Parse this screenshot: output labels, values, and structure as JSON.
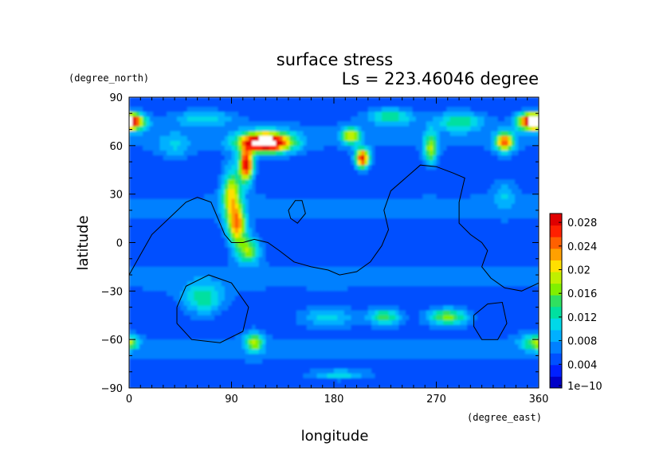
{
  "chart_data": {
    "type": "heatmap",
    "title": "surface stress",
    "subtitle": "Ls = 223.46046 degree",
    "xlabel": "longitude",
    "ylabel": "latitude",
    "x_unit": "(degree_east)",
    "y_unit": "(degree_north)",
    "xlim": [
      0,
      360
    ],
    "ylim": [
      -90,
      90
    ],
    "xticks": [
      "0",
      "90",
      "180",
      "270",
      "360"
    ],
    "yticks": [
      "90",
      "60",
      "30",
      "0",
      "−30",
      "−60",
      "−90"
    ],
    "colorbar": {
      "labels": [
        "0.028",
        "0.024",
        "0.02",
        "0.016",
        "0.012",
        "0.008",
        "0.004",
        "1e−10"
      ],
      "levels": [
        0.028,
        0.024,
        0.02,
        0.016,
        0.012,
        0.008,
        0.004,
        1e-10
      ],
      "colors": [
        "#0000c8",
        "#0020ff",
        "#0050ff",
        "#0080ff",
        "#00b0ff",
        "#00d8e8",
        "#00e0a0",
        "#30e060",
        "#80f000",
        "#c0f000",
        "#ffe000",
        "#ffa000",
        "#ff6000",
        "#ff2000",
        "#e00000"
      ]
    },
    "background_level": 0.004,
    "features": [
      {
        "lon": 120,
        "lat": 62,
        "value": 0.034,
        "rlon": 22,
        "rlat": 6
      },
      {
        "lon": 103,
        "lat": 48,
        "value": 0.028,
        "rlon": 6,
        "rlat": 10
      },
      {
        "lon": 0,
        "lat": 75,
        "value": 0.034,
        "rlon": 12,
        "rlat": 5
      },
      {
        "lon": 355,
        "lat": 75,
        "value": 0.034,
        "rlon": 12,
        "rlat": 5
      },
      {
        "lon": 205,
        "lat": 52,
        "value": 0.026,
        "rlon": 6,
        "rlat": 6
      },
      {
        "lon": 195,
        "lat": 66,
        "value": 0.018,
        "rlon": 8,
        "rlat": 5
      },
      {
        "lon": 330,
        "lat": 62,
        "value": 0.022,
        "rlon": 8,
        "rlat": 6
      },
      {
        "lon": 90,
        "lat": 30,
        "value": 0.018,
        "rlon": 8,
        "rlat": 16
      },
      {
        "lon": 95,
        "lat": 10,
        "value": 0.02,
        "rlon": 8,
        "rlat": 12
      },
      {
        "lon": 105,
        "lat": -5,
        "value": 0.016,
        "rlon": 10,
        "rlat": 8
      },
      {
        "lon": 65,
        "lat": -35,
        "value": 0.012,
        "rlon": 18,
        "rlat": 10
      },
      {
        "lon": 110,
        "lat": -62,
        "value": 0.016,
        "rlon": 8,
        "rlat": 6
      },
      {
        "lon": 0,
        "lat": -62,
        "value": 0.016,
        "rlon": 8,
        "rlat": 4
      },
      {
        "lon": 360,
        "lat": -62,
        "value": 0.016,
        "rlon": 14,
        "rlat": 5
      },
      {
        "lon": 280,
        "lat": -46,
        "value": 0.016,
        "rlon": 18,
        "rlat": 5
      },
      {
        "lon": 225,
        "lat": -46,
        "value": 0.014,
        "rlon": 14,
        "rlat": 5
      },
      {
        "lon": 175,
        "lat": -46,
        "value": 0.01,
        "rlon": 25,
        "rlat": 6
      },
      {
        "lon": 265,
        "lat": 58,
        "value": 0.016,
        "rlon": 6,
        "rlat": 10
      },
      {
        "lon": 290,
        "lat": 75,
        "value": 0.012,
        "rlon": 20,
        "rlat": 6
      },
      {
        "lon": 230,
        "lat": 78,
        "value": 0.012,
        "rlon": 20,
        "rlat": 5
      },
      {
        "lon": 65,
        "lat": 77,
        "value": 0.01,
        "rlon": 25,
        "rlat": 5
      },
      {
        "lon": 40,
        "lat": 60,
        "value": 0.008,
        "rlon": 15,
        "rlat": 8
      },
      {
        "lon": 185,
        "lat": -82,
        "value": 0.01,
        "rlon": 25,
        "rlat": 3
      },
      {
        "lon": 330,
        "lat": 30,
        "value": 0.008,
        "rlon": 10,
        "rlat": 10
      }
    ],
    "continents": [
      [
        [
          0,
          -20
        ],
        [
          8,
          -10
        ],
        [
          20,
          5
        ],
        [
          35,
          15
        ],
        [
          50,
          25
        ],
        [
          60,
          28
        ],
        [
          72,
          25
        ],
        [
          78,
          15
        ],
        [
          84,
          5
        ],
        [
          90,
          0
        ],
        [
          100,
          0
        ],
        [
          110,
          2
        ],
        [
          122,
          0
        ],
        [
          132,
          -5
        ],
        [
          145,
          -12
        ],
        [
          160,
          -15
        ],
        [
          175,
          -17
        ],
        [
          185,
          -20
        ],
        [
          200,
          -18
        ],
        [
          212,
          -12
        ],
        [
          222,
          -2
        ],
        [
          228,
          8
        ],
        [
          224,
          20
        ],
        [
          230,
          32
        ],
        [
          243,
          40
        ],
        [
          256,
          48
        ],
        [
          270,
          47
        ],
        [
          285,
          43
        ],
        [
          295,
          40
        ],
        [
          290,
          25
        ],
        [
          290,
          12
        ],
        [
          300,
          5
        ],
        [
          310,
          0
        ],
        [
          315,
          -5
        ],
        [
          310,
          -15
        ],
        [
          318,
          -22
        ],
        [
          330,
          -28
        ],
        [
          345,
          -30
        ],
        [
          360,
          -25
        ]
      ],
      [
        [
          140,
          20
        ],
        [
          146,
          26
        ],
        [
          152,
          26
        ],
        [
          155,
          18
        ],
        [
          148,
          12
        ],
        [
          142,
          15
        ],
        [
          140,
          20
        ]
      ],
      [
        [
          42,
          -40
        ],
        [
          50,
          -27
        ],
        [
          70,
          -20
        ],
        [
          90,
          -25
        ],
        [
          105,
          -40
        ],
        [
          100,
          -55
        ],
        [
          80,
          -62
        ],
        [
          55,
          -60
        ],
        [
          42,
          -50
        ],
        [
          42,
          -40
        ]
      ],
      [
        [
          303,
          -45
        ],
        [
          315,
          -38
        ],
        [
          328,
          -37
        ],
        [
          332,
          -50
        ],
        [
          324,
          -60
        ],
        [
          310,
          -60
        ],
        [
          303,
          -52
        ],
        [
          303,
          -45
        ]
      ]
    ]
  }
}
